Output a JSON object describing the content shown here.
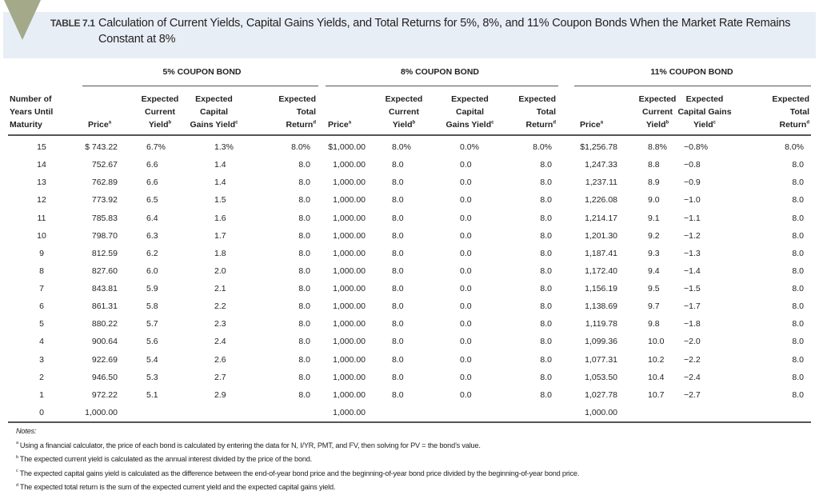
{
  "title": {
    "label": "TABLE 7.1",
    "text": "Calculation of Current Yields, Capital Gains Yields, and Total Returns for 5%, 8%, and 11% Coupon Bonds When the Market Rate Remains Constant at 8%",
    "band_color": "#e8eef6",
    "marker_color": "#a4a98a"
  },
  "groups": [
    "5% COUPON BOND",
    "8% COUPON BOND",
    "11% COUPON BOND"
  ],
  "columns": [
    {
      "label": "Number of Years Until Maturity",
      "sup": ""
    },
    {
      "label": "Price",
      "sup": "a"
    },
    {
      "label": "Expected Current Yield",
      "sup": "b"
    },
    {
      "label": "Expected Capital Gains Yield",
      "sup": "c"
    },
    {
      "label": "Expected Total Return",
      "sup": "d"
    },
    {
      "label": "Price",
      "sup": "a"
    },
    {
      "label": "Expected Current Yield",
      "sup": "b"
    },
    {
      "label": "Expected Capital Gains Yield",
      "sup": "c"
    },
    {
      "label": "Expected Total Return",
      "sup": "d"
    },
    {
      "label": "Price",
      "sup": "a"
    },
    {
      "label": "Expected Current Yield",
      "sup": "b"
    },
    {
      "label": "Expected Capital Gains Yield",
      "sup": "c"
    },
    {
      "label": "Expected Total Return",
      "sup": "d"
    }
  ],
  "rows": [
    [
      "15",
      "$ 743.22",
      "6.7%",
      "1.3%",
      "8.0%",
      "$1,000.00",
      "8.0%",
      "0.0%",
      "8.0%",
      "$1,256.78",
      "8.8%",
      "−0.8%",
      "8.0%"
    ],
    [
      "14",
      "752.67",
      "6.6",
      "1.4",
      "8.0",
      "1,000.00",
      "8.0",
      "0.0",
      "8.0",
      "1,247.33",
      "8.8",
      "−0.8",
      "8.0"
    ],
    [
      "13",
      "762.89",
      "6.6",
      "1.4",
      "8.0",
      "1,000.00",
      "8.0",
      "0.0",
      "8.0",
      "1,237.11",
      "8.9",
      "−0.9",
      "8.0"
    ],
    [
      "12",
      "773.92",
      "6.5",
      "1.5",
      "8.0",
      "1,000.00",
      "8.0",
      "0.0",
      "8.0",
      "1,226.08",
      "9.0",
      "−1.0",
      "8.0"
    ],
    [
      "11",
      "785.83",
      "6.4",
      "1.6",
      "8.0",
      "1,000.00",
      "8.0",
      "0.0",
      "8.0",
      "1,214.17",
      "9.1",
      "−1.1",
      "8.0"
    ],
    [
      "10",
      "798.70",
      "6.3",
      "1.7",
      "8.0",
      "1,000.00",
      "8.0",
      "0.0",
      "8.0",
      "1,201.30",
      "9.2",
      "−1.2",
      "8.0"
    ],
    [
      "9",
      "812.59",
      "6.2",
      "1.8",
      "8.0",
      "1,000.00",
      "8.0",
      "0.0",
      "8.0",
      "1,187.41",
      "9.3",
      "−1.3",
      "8.0"
    ],
    [
      "8",
      "827.60",
      "6.0",
      "2.0",
      "8.0",
      "1,000.00",
      "8.0",
      "0.0",
      "8.0",
      "1,172.40",
      "9.4",
      "−1.4",
      "8.0"
    ],
    [
      "7",
      "843.81",
      "5.9",
      "2.1",
      "8.0",
      "1,000.00",
      "8.0",
      "0.0",
      "8.0",
      "1,156.19",
      "9.5",
      "−1.5",
      "8.0"
    ],
    [
      "6",
      "861.31",
      "5.8",
      "2.2",
      "8.0",
      "1,000.00",
      "8.0",
      "0.0",
      "8.0",
      "1,138.69",
      "9.7",
      "−1.7",
      "8.0"
    ],
    [
      "5",
      "880.22",
      "5.7",
      "2.3",
      "8.0",
      "1,000.00",
      "8.0",
      "0.0",
      "8.0",
      "1,119.78",
      "9.8",
      "−1.8",
      "8.0"
    ],
    [
      "4",
      "900.64",
      "5.6",
      "2.4",
      "8.0",
      "1,000.00",
      "8.0",
      "0.0",
      "8.0",
      "1,099.36",
      "10.0",
      "−2.0",
      "8.0"
    ],
    [
      "3",
      "922.69",
      "5.4",
      "2.6",
      "8.0",
      "1,000.00",
      "8.0",
      "0.0",
      "8.0",
      "1,077.31",
      "10.2",
      "−2.2",
      "8.0"
    ],
    [
      "2",
      "946.50",
      "5.3",
      "2.7",
      "8.0",
      "1,000.00",
      "8.0",
      "0.0",
      "8.0",
      "1,053.50",
      "10.4",
      "−2.4",
      "8.0"
    ],
    [
      "1",
      "972.22",
      "5.1",
      "2.9",
      "8.0",
      "1,000.00",
      "8.0",
      "0.0",
      "8.0",
      "1,027.78",
      "10.7",
      "−2.7",
      "8.0"
    ],
    [
      "0",
      "1,000.00",
      "",
      "",
      "",
      "1,000.00",
      "",
      "",
      "",
      "1,000.00",
      "",
      "",
      ""
    ]
  ],
  "notes": {
    "heading": "Notes:",
    "items": [
      {
        "mark": "a",
        "text": "Using a financial calculator, the price of each bond is calculated by entering the data for N, I/YR, PMT, and FV, then solving for PV = the bond’s value."
      },
      {
        "mark": "b",
        "text": "The expected current yield is calculated as the annual interest divided by the price of the bond."
      },
      {
        "mark": "c",
        "text": "The expected capital gains yield is calculated as the difference between the end-of-year bond price and the beginning-of-year bond price divided by the beginning-of-year bond price."
      },
      {
        "mark": "d",
        "text": "The expected total return is the sum of the expected current yield and the expected capital gains yield."
      }
    ]
  }
}
